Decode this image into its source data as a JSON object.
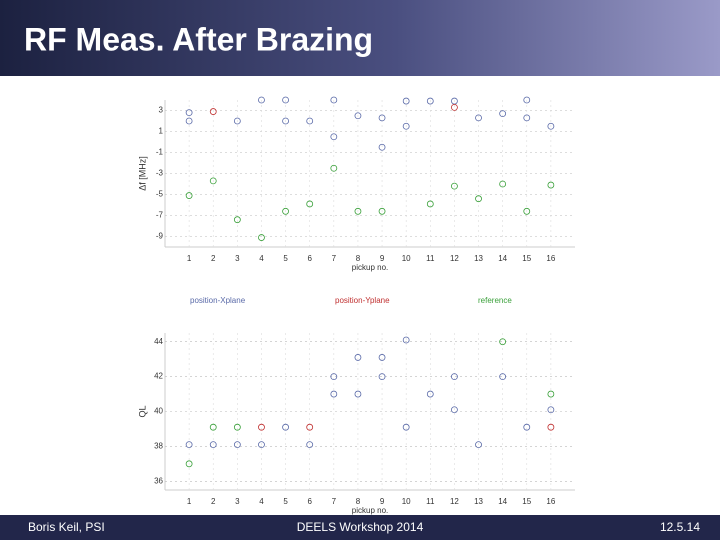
{
  "slide": {
    "title": "RF Meas. After Brazing",
    "footer": {
      "left": "Boris Keil, PSI",
      "center": "DEELS Workshop 2014",
      "right": "12.5.14"
    }
  },
  "chart_data": [
    {
      "type": "scatter",
      "y_label": "Δf [MHz]",
      "x_label": "pickup no.",
      "xlim": [
        0,
        17
      ],
      "xticks": [
        1,
        2,
        3,
        4,
        5,
        6,
        7,
        8,
        9,
        10,
        11,
        12,
        13,
        14,
        15,
        16
      ],
      "ylim": [
        -10,
        4
      ],
      "yticks": [
        3,
        1,
        -1,
        -3,
        -5,
        -7,
        -9
      ],
      "grid": true,
      "series": [
        {
          "name": "position-Xplane",
          "color": "#5a6aa8",
          "x": [
            1,
            1,
            3,
            4,
            5,
            5,
            6,
            7,
            7,
            8,
            9,
            9,
            10,
            10,
            11,
            12,
            13,
            14,
            15,
            15,
            16
          ],
          "values": [
            2.8,
            2,
            2,
            4,
            4,
            2,
            2,
            4,
            0.5,
            2.5,
            2.3,
            -0.5,
            3.9,
            1.5,
            3.9,
            3.9,
            2.3,
            2.7,
            4,
            2.3,
            1.5
          ]
        },
        {
          "name": "position-Yplane",
          "color": "#c03030",
          "x": [
            2,
            12
          ],
          "values": [
            2.9,
            3.3
          ]
        },
        {
          "name": "reference",
          "color": "#3aa03a",
          "x": [
            1,
            2,
            3,
            4,
            5,
            6,
            7,
            8,
            9,
            11,
            12,
            13,
            14,
            15,
            16
          ],
          "values": [
            -5.1,
            -3.7,
            -7.4,
            -9.1,
            -6.6,
            -5.9,
            -2.5,
            -6.6,
            -6.6,
            -5.9,
            -4.2,
            -5.4,
            -4,
            -6.6,
            -4.1
          ]
        }
      ]
    },
    {
      "type": "scatter",
      "y_label": "QL",
      "x_label": "pickup no.",
      "xlim": [
        0,
        17
      ],
      "xticks": [
        1,
        2,
        3,
        4,
        5,
        6,
        7,
        8,
        9,
        10,
        11,
        12,
        13,
        14,
        15,
        16
      ],
      "ylim": [
        35.5,
        44.5
      ],
      "yticks": [
        44,
        42,
        40,
        38,
        36
      ],
      "grid": true,
      "series": [
        {
          "color": "#5a6aa8",
          "x": [
            1,
            2,
            3,
            4,
            6,
            7,
            8,
            9,
            10,
            11,
            12,
            13,
            14,
            15,
            16,
            5,
            7,
            8,
            9,
            10,
            12
          ],
          "values": [
            38.1,
            38.1,
            38.1,
            38.1,
            38.1,
            41,
            41,
            42,
            39.1,
            41,
            40.1,
            38.1,
            42,
            39.1,
            40.1,
            39.1,
            42,
            43.1,
            43.1,
            44.1,
            42
          ]
        },
        {
          "color": "#c03030",
          "x": [
            4,
            6,
            16
          ],
          "values": [
            39.1,
            39.1,
            39.1
          ]
        },
        {
          "color": "#3aa03a",
          "x": [
            1,
            2,
            3,
            14,
            16
          ],
          "values": [
            37,
            39.1,
            39.1,
            44,
            41
          ]
        }
      ]
    }
  ]
}
